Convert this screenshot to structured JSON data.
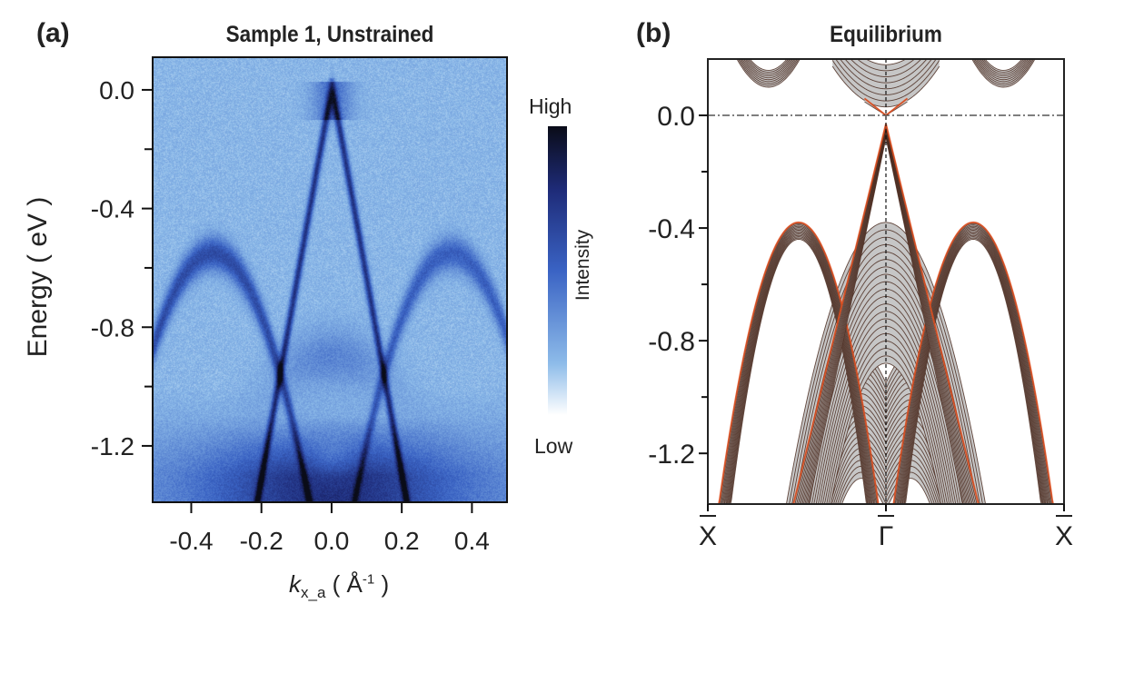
{
  "chart_data": [
    {
      "panel_label": "(a)",
      "type": "heatmap",
      "title": "Sample 1, Unstrained",
      "xlabel_main": "k",
      "xlabel_sub": "x_a",
      "xlabel_unit": "( Å",
      "xlabel_unit_sup": "-1",
      "xlabel_close": ")",
      "ylabel": "Energy ( eV )",
      "xlim": [
        -0.51,
        0.5
      ],
      "ylim": [
        -1.39,
        0.11
      ],
      "xticks": [
        -0.4,
        -0.2,
        0.0,
        0.2,
        0.4
      ],
      "xtick_labels": [
        "-0.4",
        "-0.2",
        "0.0",
        "0.2",
        "0.4"
      ],
      "yticks": [
        0.0,
        -0.4,
        -0.8,
        -1.2
      ],
      "ytick_labels": [
        "0.0",
        "-0.4",
        "-0.8",
        "-1.2"
      ],
      "yminor_ticks": [
        -0.2,
        -0.6,
        -1.0
      ],
      "colorbar": {
        "label": "Intensity",
        "high": "High",
        "low": "Low",
        "colors": [
          "#ffffff",
          "#8dbbe9",
          "#3a63c4",
          "#1e2b78",
          "#0a0c18"
        ]
      }
    },
    {
      "panel_label": "(b)",
      "type": "line",
      "title": "Equilibrium",
      "ylim": [
        -1.38,
        0.2
      ],
      "yticks": [
        0.0,
        -0.4,
        -0.8,
        -1.2
      ],
      "ytick_labels": [
        "0.0",
        "-0.4",
        "-0.8",
        "-1.2"
      ],
      "yminor_ticks": [
        -0.2,
        -0.6,
        -1.0
      ],
      "xtick_labels": [
        "X",
        "Γ",
        "X"
      ],
      "fermi_level": 0.0,
      "colors": {
        "band": "#4a2a1e",
        "bulk_fill": "#c6c6c6",
        "surface_highlight": "#e8501e"
      }
    }
  ]
}
